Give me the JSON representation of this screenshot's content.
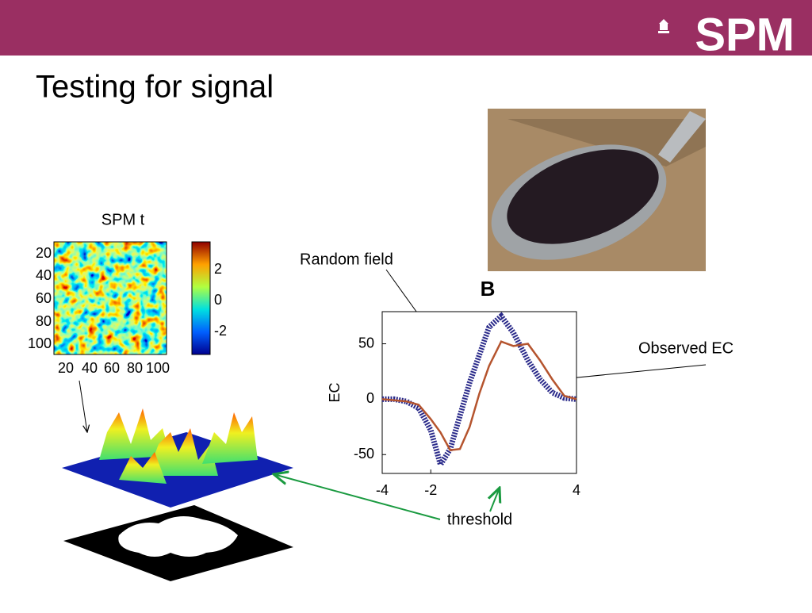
{
  "header": {
    "logo": "SPM"
  },
  "title": "Testing for signal",
  "heatmap": {
    "title": "SPM t",
    "yticks": [
      20,
      40,
      60,
      80,
      100
    ],
    "xticks": [
      20,
      40,
      60,
      80,
      100
    ],
    "colorbar_ticks": [
      2,
      0,
      -2
    ]
  },
  "threshold_label": "threshold",
  "chart_data": {
    "type": "line",
    "title": "B",
    "ylabel": "EC",
    "x": [
      -4,
      -3.5,
      -3,
      -2.5,
      -2,
      -1.6,
      -1.2,
      -0.8,
      -0.4,
      0,
      0.4,
      0.9,
      1.4,
      2,
      2.5,
      3,
      3.5,
      4
    ],
    "series": [
      {
        "name": "Random field",
        "color": "#2a2a8a",
        "values": [
          0,
          0,
          -2,
          -8,
          -28,
          -59,
          -45,
          -15,
          15,
          40,
          65,
          75,
          60,
          35,
          18,
          6,
          1,
          0
        ]
      },
      {
        "name": "Observed EC",
        "color": "#b5542e",
        "values": [
          0,
          -1,
          -2,
          -5,
          -18,
          -30,
          -46,
          -45,
          -25,
          5,
          30,
          52,
          48,
          50,
          35,
          18,
          3,
          0
        ]
      }
    ],
    "xlim": [
      -4,
      4
    ],
    "xticks": [
      -4,
      -2,
      4
    ],
    "ylim": [
      -67,
      79
    ],
    "yticks": [
      -50,
      0,
      50
    ]
  }
}
